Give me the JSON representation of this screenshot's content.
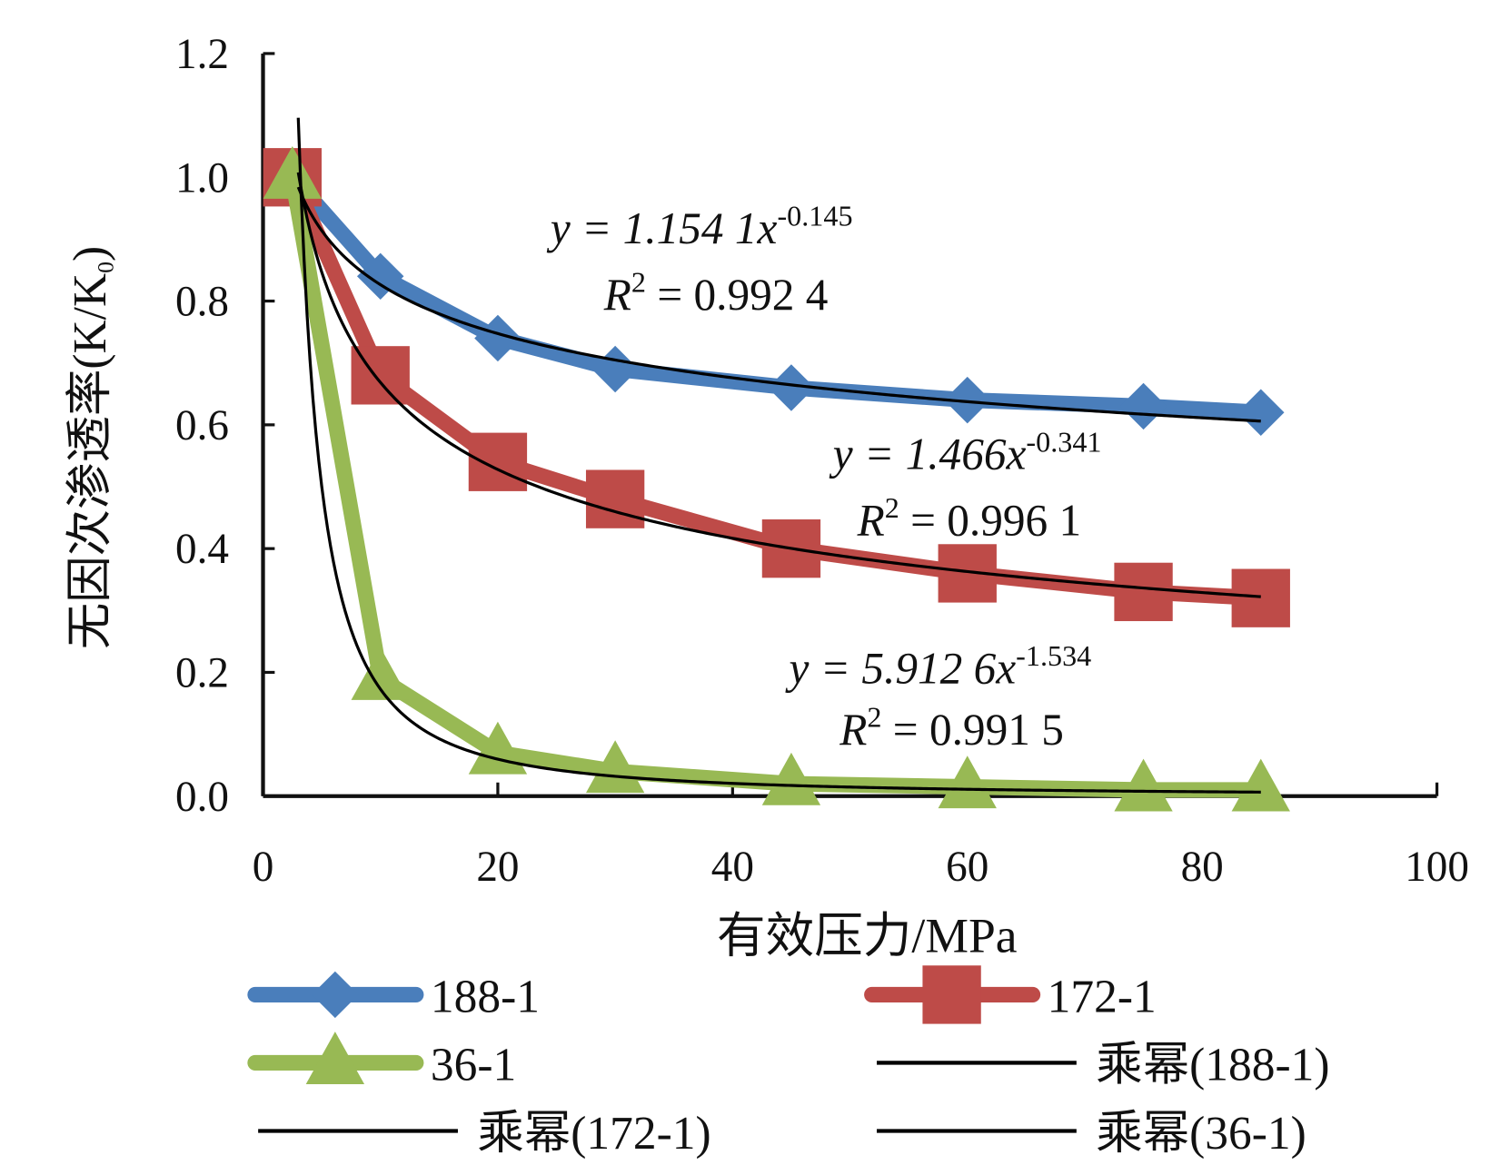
{
  "chart_data": {
    "type": "line",
    "xlabel": "有效压力/MPa",
    "ylabel": "无因次渗透率(K/K",
    "ylabel_sub": "0",
    "ylabel_end": ")",
    "xlim": [
      0,
      100
    ],
    "ylim": [
      0,
      1.2
    ],
    "xticks": [
      "0",
      "20",
      "40",
      "60",
      "80",
      "100"
    ],
    "yticks": [
      "0.0",
      "0.2",
      "0.4",
      "0.6",
      "0.8",
      "1.0",
      "1.2"
    ],
    "grid": false,
    "legend_position": "bottom",
    "x": [
      2.5,
      10,
      20,
      30,
      45,
      60,
      75,
      85
    ],
    "series": [
      {
        "name": "188-1",
        "color": "#4a7ebb",
        "marker": "diamond",
        "values": [
          1.0,
          0.84,
          0.74,
          0.69,
          0.66,
          0.64,
          0.63,
          0.62
        ]
      },
      {
        "name": "172-1",
        "color": "#be4b48",
        "marker": "square",
        "values": [
          1.0,
          0.68,
          0.54,
          0.48,
          0.4,
          0.36,
          0.33,
          0.32
        ]
      },
      {
        "name": "36-1",
        "color": "#98b954",
        "marker": "triangle",
        "values": [
          1.0,
          0.19,
          0.07,
          0.04,
          0.02,
          0.015,
          0.01,
          0.01
        ]
      }
    ],
    "fits": [
      {
        "name": "乘幂(188-1)",
        "a": 1.1541,
        "b": -0.145,
        "equation": "y = 1.154 1x",
        "exponent": "-0.145",
        "r2_label": "R",
        "r2_value": " = 0.992 4"
      },
      {
        "name": "乘幂(172-1)",
        "a": 1.466,
        "b": -0.341,
        "equation": "y = 1.466x",
        "exponent": "-0.341",
        "r2_label": "R",
        "r2_value": " = 0.996 1"
      },
      {
        "name": "乘幂(36-1)",
        "a": 5.9126,
        "b": -1.534,
        "equation": "y = 5.912 6x",
        "exponent": "-1.534",
        "r2_label": "R",
        "r2_value": " = 0.991 5"
      }
    ]
  }
}
